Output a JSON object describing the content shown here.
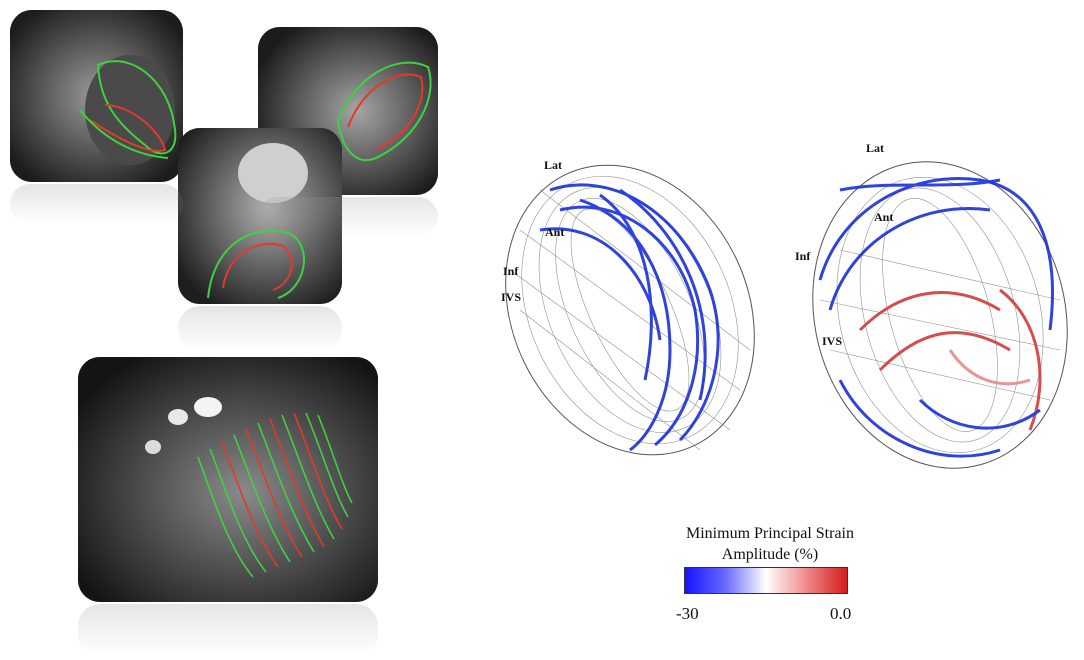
{
  "labels_left_model": {
    "lat": "Lat",
    "ant": "Ant",
    "inf": "Inf",
    "ivs": "IVS"
  },
  "labels_right_model": {
    "lat": "Lat",
    "ant": "Ant",
    "inf": "Inf",
    "ivs": "IVS"
  },
  "colorbar": {
    "title_line1": "Minimum Principal Strain",
    "title_line2": "Amplitude (%)",
    "min_label": "-30",
    "max_label": "0.0",
    "colors": [
      "#1414ff",
      "#ffffff",
      "#d21c1c"
    ]
  },
  "contour_colors": {
    "epicardium": "#3fd13f",
    "endocardium": "#e23a2a"
  }
}
